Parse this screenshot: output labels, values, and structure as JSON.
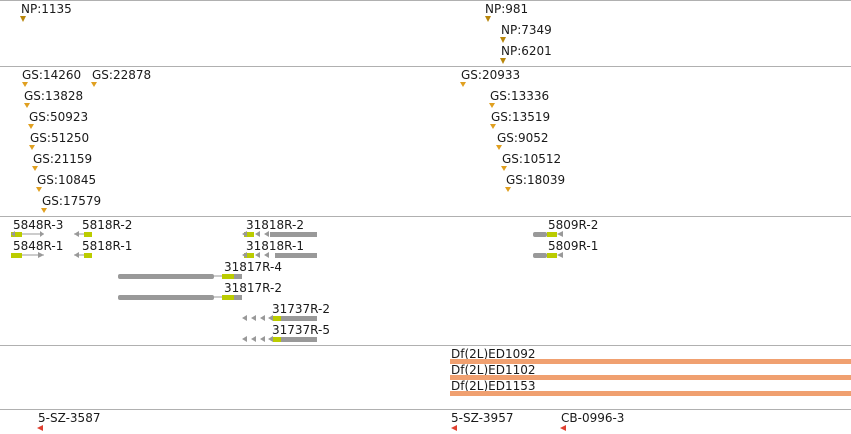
{
  "tracks": {
    "np": {
      "features": [
        {
          "label": "NP:1135"
        },
        {
          "label": "NP:981"
        },
        {
          "label": "NP:7349"
        },
        {
          "label": "NP:6201"
        }
      ]
    },
    "gs": {
      "features": [
        {
          "label": "GS:14260"
        },
        {
          "label": "GS:22878"
        },
        {
          "label": "GS:13828"
        },
        {
          "label": "GS:50923"
        },
        {
          "label": "GS:51250"
        },
        {
          "label": "GS:21159"
        },
        {
          "label": "GS:10845"
        },
        {
          "label": "GS:17579"
        },
        {
          "label": "GS:20933"
        },
        {
          "label": "GS:13336"
        },
        {
          "label": "GS:13519"
        },
        {
          "label": "GS:9052"
        },
        {
          "label": "GS:10512"
        },
        {
          "label": "GS:18039"
        }
      ]
    },
    "transcripts": {
      "features": [
        {
          "label": "5848R-3"
        },
        {
          "label": "5848R-1"
        },
        {
          "label": "5818R-2"
        },
        {
          "label": "5818R-1"
        },
        {
          "label": "31818R-2"
        },
        {
          "label": "31818R-1"
        },
        {
          "label": "31817R-4"
        },
        {
          "label": "31817R-2"
        },
        {
          "label": "31737R-2"
        },
        {
          "label": "31737R-5"
        },
        {
          "label": "5809R-2"
        },
        {
          "label": "5809R-1"
        }
      ]
    },
    "deficiencies": {
      "color": "#f0a070",
      "features": [
        {
          "label": "Df(2L)ED1092"
        },
        {
          "label": "Df(2L)ED1102"
        },
        {
          "label": "Df(2L)ED1153"
        }
      ]
    },
    "sz": {
      "features": [
        {
          "label": "5-SZ-3587"
        },
        {
          "label": "5-SZ-3957"
        },
        {
          "label": "CB-0996-3"
        }
      ]
    }
  }
}
